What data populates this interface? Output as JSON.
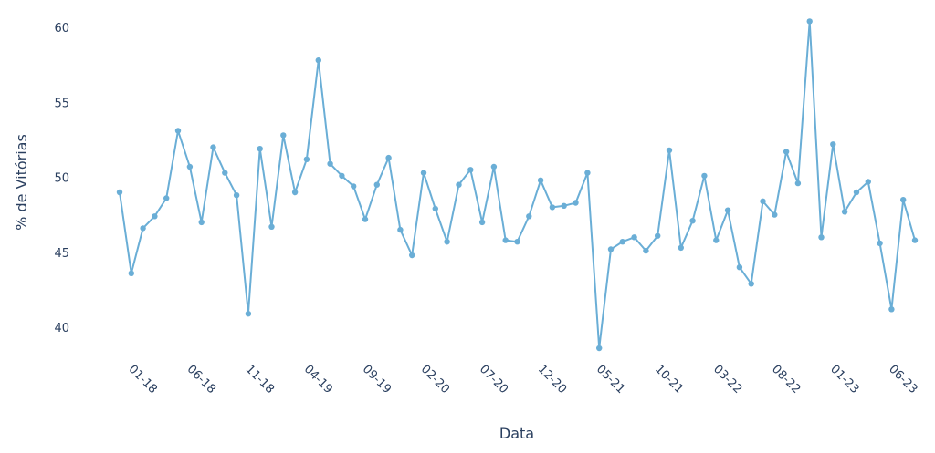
{
  "chart_data": {
    "type": "line",
    "xlabel": "Data",
    "ylabel": "% de Vitórias",
    "ylim": [
      37.5,
      61.5
    ],
    "yticks": [
      40,
      45,
      50,
      55,
      60
    ],
    "xtick_labels": [
      "01-18",
      "06-18",
      "11-18",
      "04-19",
      "09-19",
      "02-20",
      "07-20",
      "12-20",
      "05-21",
      "10-21",
      "03-22",
      "08-22",
      "01-23",
      "06-23"
    ],
    "x_period_start": "11-17",
    "series": [
      {
        "color": "#6aaed6",
        "values": [
          49.0,
          43.6,
          46.6,
          47.4,
          48.6,
          53.1,
          50.7,
          47.0,
          52.0,
          50.3,
          48.8,
          40.9,
          51.9,
          46.7,
          52.8,
          49.0,
          51.2,
          57.8,
          50.9,
          50.1,
          49.4,
          47.2,
          49.5,
          51.3,
          46.5,
          44.8,
          50.3,
          47.9,
          45.7,
          49.5,
          50.5,
          47.0,
          50.7,
          45.8,
          45.7,
          47.4,
          49.8,
          48.0,
          48.1,
          48.3,
          50.3,
          38.6,
          45.2,
          45.7,
          46.0,
          45.1,
          46.1,
          51.8,
          45.3,
          47.1,
          50.1,
          45.8,
          47.8,
          44.0,
          42.9,
          48.4,
          47.5,
          51.7,
          49.6,
          60.4,
          46.0,
          52.2,
          47.7,
          49.0,
          49.7,
          45.6,
          41.2,
          48.5,
          45.8
        ]
      }
    ]
  }
}
